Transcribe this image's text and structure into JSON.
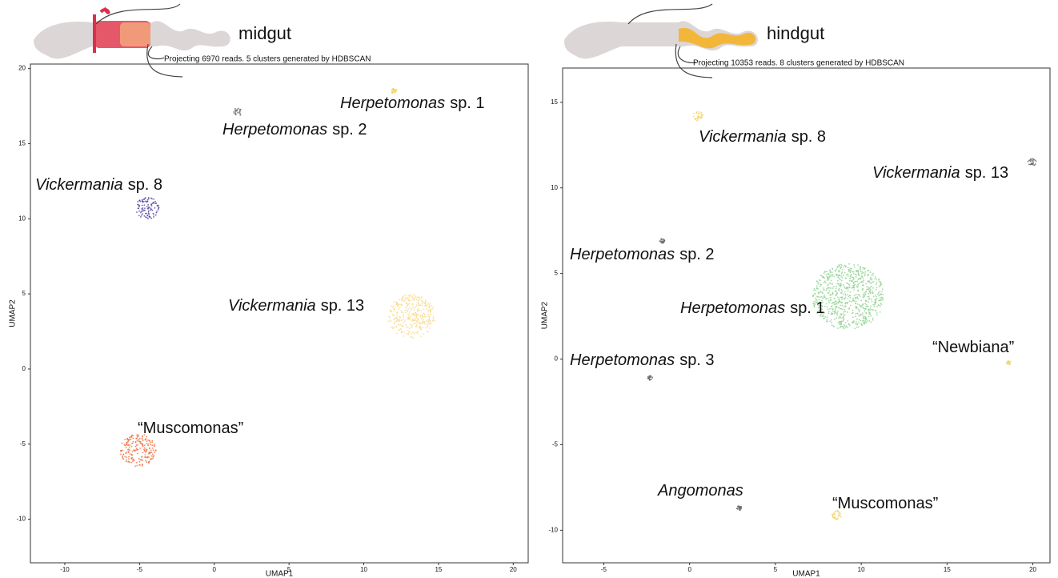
{
  "chart_data": [
    {
      "type": "scatter",
      "title": "midgut",
      "subtitle": "Projecting 6970 reads. 5 clusters generated by HDBSCAN",
      "xlabel": "UMAP1",
      "ylabel": "UMAP2",
      "xlim": [
        -12.3,
        21.0
      ],
      "ylim": [
        -12.9,
        20.3
      ],
      "xticks": [
        -10,
        -5,
        0,
        5,
        10,
        15,
        20
      ],
      "yticks": [
        -10,
        -5,
        0,
        5,
        10,
        15,
        20
      ],
      "clusters": [
        {
          "name": "Herpetomonas",
          "suffix": "sp. 1",
          "italic": true,
          "x": 12.0,
          "y": 18.5,
          "radius": 0.2,
          "color": "#f3cf5c"
        },
        {
          "name": "Herpetomonas",
          "suffix": "sp. 2",
          "italic": true,
          "x": 1.55,
          "y": 17.1,
          "radius": 0.3,
          "color": "#777777"
        },
        {
          "name": "Vickermania",
          "suffix": "sp. 8",
          "italic": true,
          "x": -4.5,
          "y": 10.7,
          "radius": 0.8,
          "color": "#4b3f9e"
        },
        {
          "name": "Vickermania",
          "suffix": "sp. 13",
          "italic": true,
          "x": 13.2,
          "y": 3.5,
          "radius": 1.6,
          "color": "#f8d98a"
        },
        {
          "name": "“Muscomonas”",
          "italic": false,
          "x": -5.1,
          "y": -5.4,
          "radius": 1.2,
          "color": "#f06a3a"
        }
      ]
    },
    {
      "type": "scatter",
      "title": "hindgut",
      "subtitle": "Projecting 10353 reads. 8 clusters generated by HDBSCAN",
      "xlabel": "UMAP1",
      "ylabel": "UMAP2",
      "xlim": [
        -7.4,
        21.0
      ],
      "ylim": [
        -11.9,
        17.0
      ],
      "xticks": [
        -5,
        0,
        5,
        10,
        15,
        20
      ],
      "yticks": [
        -10,
        -5,
        0,
        5,
        10,
        15
      ],
      "clusters": [
        {
          "name": "Vickermania",
          "suffix": "sp. 8",
          "italic": true,
          "x": 0.47,
          "y": 14.2,
          "radius": 0.3,
          "color": "#f3d36a"
        },
        {
          "name": "Vickermania",
          "suffix": "sp. 13",
          "italic": true,
          "x": 19.95,
          "y": 11.5,
          "radius": 0.25,
          "color": "#666666"
        },
        {
          "name": "Herpetomonas",
          "suffix": "sp. 2",
          "italic": true,
          "x": -1.6,
          "y": 6.9,
          "radius": 0.15,
          "color": "#666666"
        },
        {
          "name": "Herpetomonas",
          "suffix": "sp. 1",
          "italic": true,
          "x": 9.25,
          "y": 3.65,
          "radius": 2.1,
          "color": "#8fd18f"
        },
        {
          "name": "Herpetomonas",
          "suffix": "sp. 3",
          "italic": true,
          "x": -2.3,
          "y": -1.1,
          "radius": 0.15,
          "color": "#666666"
        },
        {
          "name": "“Newbiana”",
          "italic": false,
          "x": 18.6,
          "y": -0.2,
          "radius": 0.15,
          "color": "#f3d36a"
        },
        {
          "name": "Angomonas",
          "italic": true,
          "x": 2.9,
          "y": -8.7,
          "radius": 0.15,
          "color": "#666666"
        },
        {
          "name": "“Muscomonas”",
          "italic": false,
          "x": 8.55,
          "y": -9.1,
          "radius": 0.3,
          "color": "#f3d36a"
        }
      ]
    }
  ]
}
